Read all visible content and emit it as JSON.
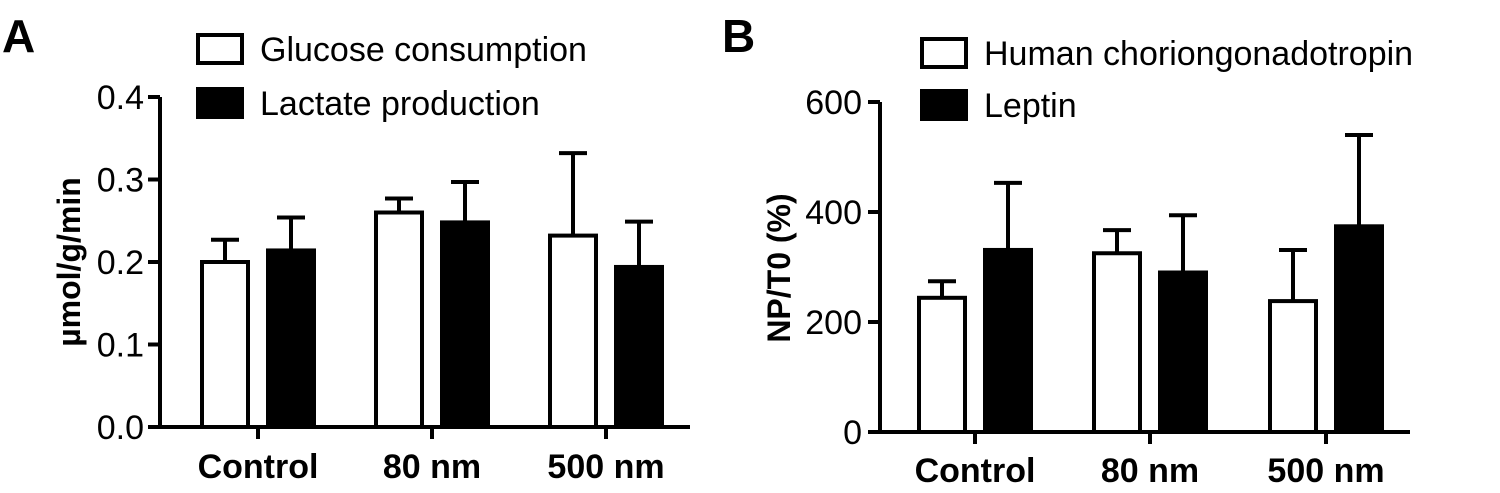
{
  "chart_data": [
    {
      "panel_label": "A",
      "type": "bar",
      "categories": [
        "Control",
        "80 nm",
        "500 nm"
      ],
      "ylabel": "µmol/g/min",
      "ylim": [
        0,
        0.4
      ],
      "yticks": [
        "0.0",
        "0.1",
        "0.2",
        "0.3",
        "0.4"
      ],
      "ytick_values": [
        0,
        0.1,
        0.2,
        0.3,
        0.4
      ],
      "legend_position": "top-left",
      "grid": false,
      "series": [
        {
          "name": "Glucose consumption",
          "fill": "#ffffff",
          "values": [
            0.2,
            0.26,
            0.232
          ],
          "errors": [
            0.027,
            0.017,
            0.1
          ]
        },
        {
          "name": "Lactate production",
          "fill": "#000000",
          "values": [
            0.214,
            0.248,
            0.194
          ],
          "errors": [
            0.04,
            0.049,
            0.055
          ]
        }
      ]
    },
    {
      "panel_label": "B",
      "type": "bar",
      "categories": [
        "Control",
        "80 nm",
        "500 nm"
      ],
      "ylabel": "NP/T0 (%)",
      "ylim": [
        0,
        600
      ],
      "yticks": [
        "0",
        "200",
        "400",
        "600"
      ],
      "ytick_values": [
        0,
        200,
        400,
        600
      ],
      "legend_position": "top-left",
      "grid": false,
      "series": [
        {
          "name": "Human choriongonadotropin",
          "fill": "#ffffff",
          "values": [
            244,
            325,
            238
          ],
          "errors": [
            30,
            42,
            93
          ]
        },
        {
          "name": "Leptin",
          "fill": "#000000",
          "values": [
            331,
            290,
            374
          ],
          "errors": [
            122,
            104,
            166
          ]
        }
      ]
    }
  ]
}
